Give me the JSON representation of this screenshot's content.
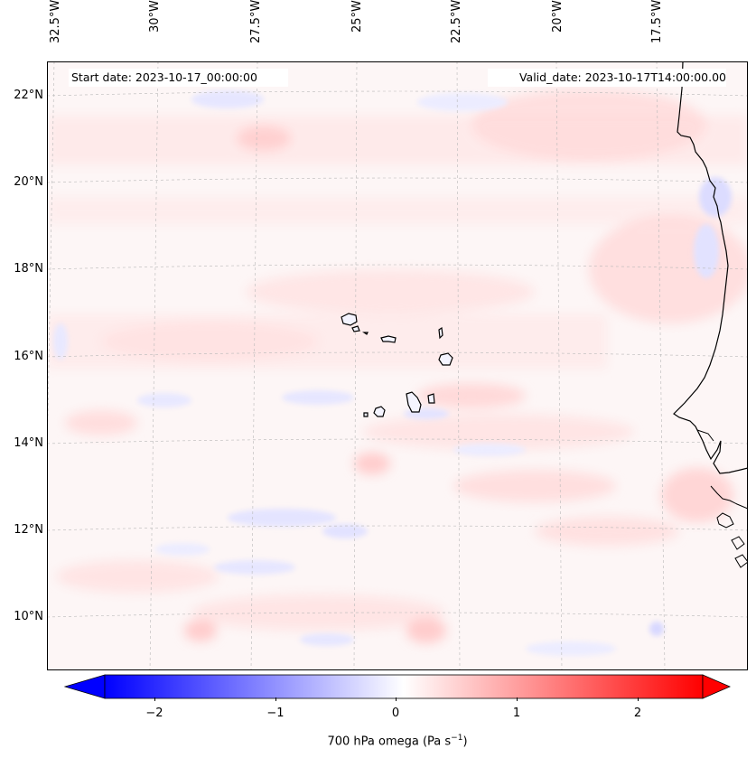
{
  "map": {
    "lon_labels": [
      "32.5°W",
      "30°W",
      "27.5°W",
      "25°W",
      "22.5°W",
      "20°W",
      "17.5°W"
    ],
    "lat_labels": [
      "22°N",
      "20°N",
      "18°N",
      "16°N",
      "14°N",
      "12°N",
      "10°N"
    ],
    "start_date": "Start date: 2023-10-17_00:00:00",
    "valid_date": "Valid_date: 2023-10-17T14:00:00.00",
    "colors": {
      "positive": "#ff0000",
      "negative": "#0000ff",
      "neutral": "#ffffff",
      "coastline": "#000000",
      "grid": "#b0b0b0"
    }
  },
  "colorbar": {
    "ticks": [
      "−2",
      "−1",
      "0",
      "1",
      "2"
    ],
    "label_main": "700 hPa omega (Pa s",
    "label_sup": "−1",
    "label_end": ")",
    "range": [
      -2.5,
      2.5
    ]
  }
}
